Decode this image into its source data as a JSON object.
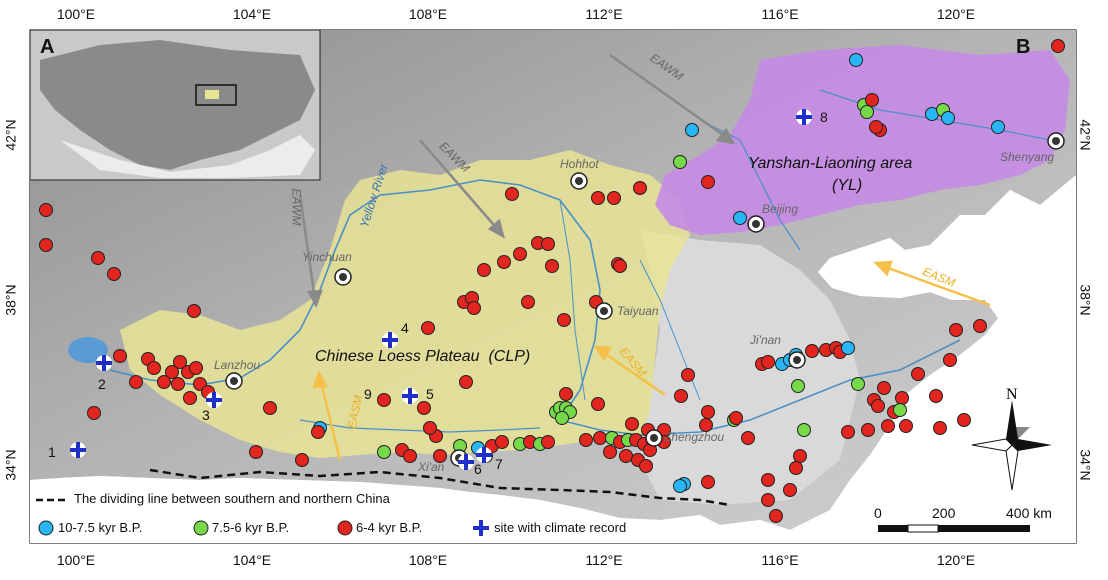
{
  "panels": {
    "inset_letter": "A",
    "main_letter": "B"
  },
  "lon_ticks_top": [
    "100°E",
    "104°E",
    "108°E",
    "112°E",
    "116°E",
    "120°E"
  ],
  "lon_ticks_bottom": [
    "100°E",
    "104°E",
    "108°E",
    "112°E",
    "116°E",
    "120°E"
  ],
  "lat_ticks_left": [
    "42°N",
    "38°N",
    "34°N"
  ],
  "lat_ticks_right": [
    "42°N",
    "38°N",
    "34°N"
  ],
  "regions": {
    "yl_name": "Yanshan-Liaoning area",
    "yl_abbr": "(YL)",
    "clp_name": "Chinese Loess Plateau",
    "clp_abbr": "(CLP)",
    "river": "Yellow River"
  },
  "cities": [
    "Hohhot",
    "Shenyang",
    "Beijing",
    "Yinchuan",
    "Taiyuan",
    "Lanzhou",
    "Ji'nan",
    "Zhengzhou",
    "Xi'an"
  ],
  "winds": {
    "eawm": "EAWM",
    "easm": "EASM"
  },
  "climate_sites": [
    "1",
    "2",
    "3",
    "4",
    "5",
    "6",
    "7",
    "8",
    "9"
  ],
  "legend": {
    "dividing_line": "The dividing line between southern and northern China",
    "group1": "10-7.5 kyr B.P.",
    "group2": "7.5-6 kyr B.P.",
    "group3": "6-4 kyr B.P.",
    "climate": "site with climate record"
  },
  "scale": {
    "zero": "0",
    "mid": "200",
    "end": "400 km"
  },
  "north": "N",
  "colors": {
    "blue": "#29b6f6",
    "green": "#76d94a",
    "red": "#e3251f",
    "cross": "#1f2fc9",
    "loess": "#e8e496",
    "yl": "#c58be6",
    "lake": "#5b9bd5"
  }
}
